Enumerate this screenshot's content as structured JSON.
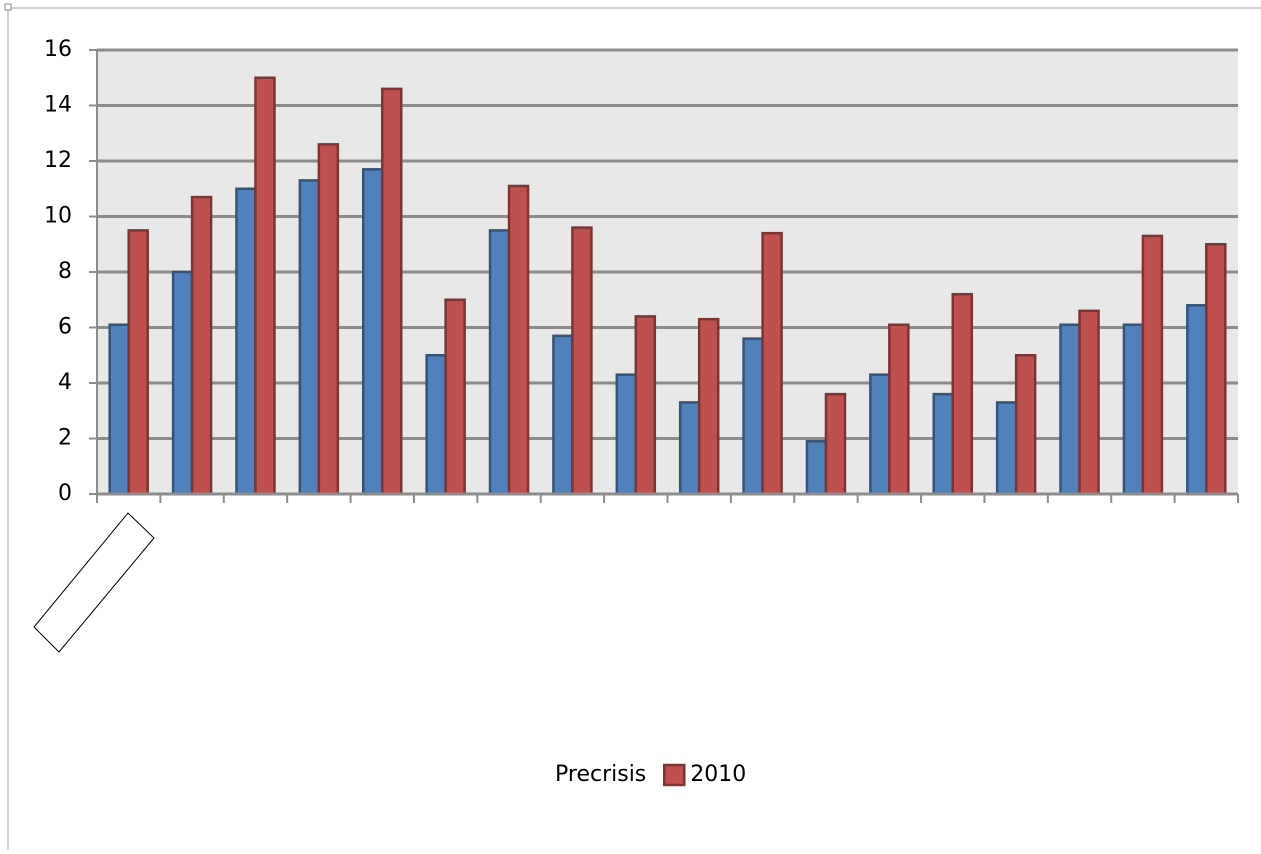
{
  "chart_data": {
    "type": "bar",
    "categories": [
      null,
      null,
      null,
      null,
      null,
      null,
      null,
      null,
      null,
      null,
      null,
      null,
      null,
      null,
      null,
      null,
      null,
      null
    ],
    "series": [
      {
        "name": "Precrisis",
        "color": "#4f81bd",
        "values": [
          6.1,
          8.0,
          11.0,
          11.3,
          11.7,
          5.0,
          9.5,
          5.7,
          4.3,
          3.3,
          5.6,
          1.9,
          4.3,
          3.6,
          3.3,
          6.1,
          6.1,
          6.8
        ]
      },
      {
        "name": "2010",
        "color": "#c0504d",
        "values": [
          9.5,
          10.7,
          15.0,
          12.6,
          14.6,
          7.0,
          11.1,
          9.6,
          6.4,
          6.3,
          9.4,
          3.6,
          6.1,
          7.2,
          5.0,
          6.6,
          9.3,
          9.0
        ]
      }
    ],
    "ylim": [
      0,
      16
    ],
    "yticks": [
      0,
      2,
      4,
      6,
      8,
      10,
      12,
      14,
      16
    ],
    "grid": true,
    "legend": "bottom"
  }
}
